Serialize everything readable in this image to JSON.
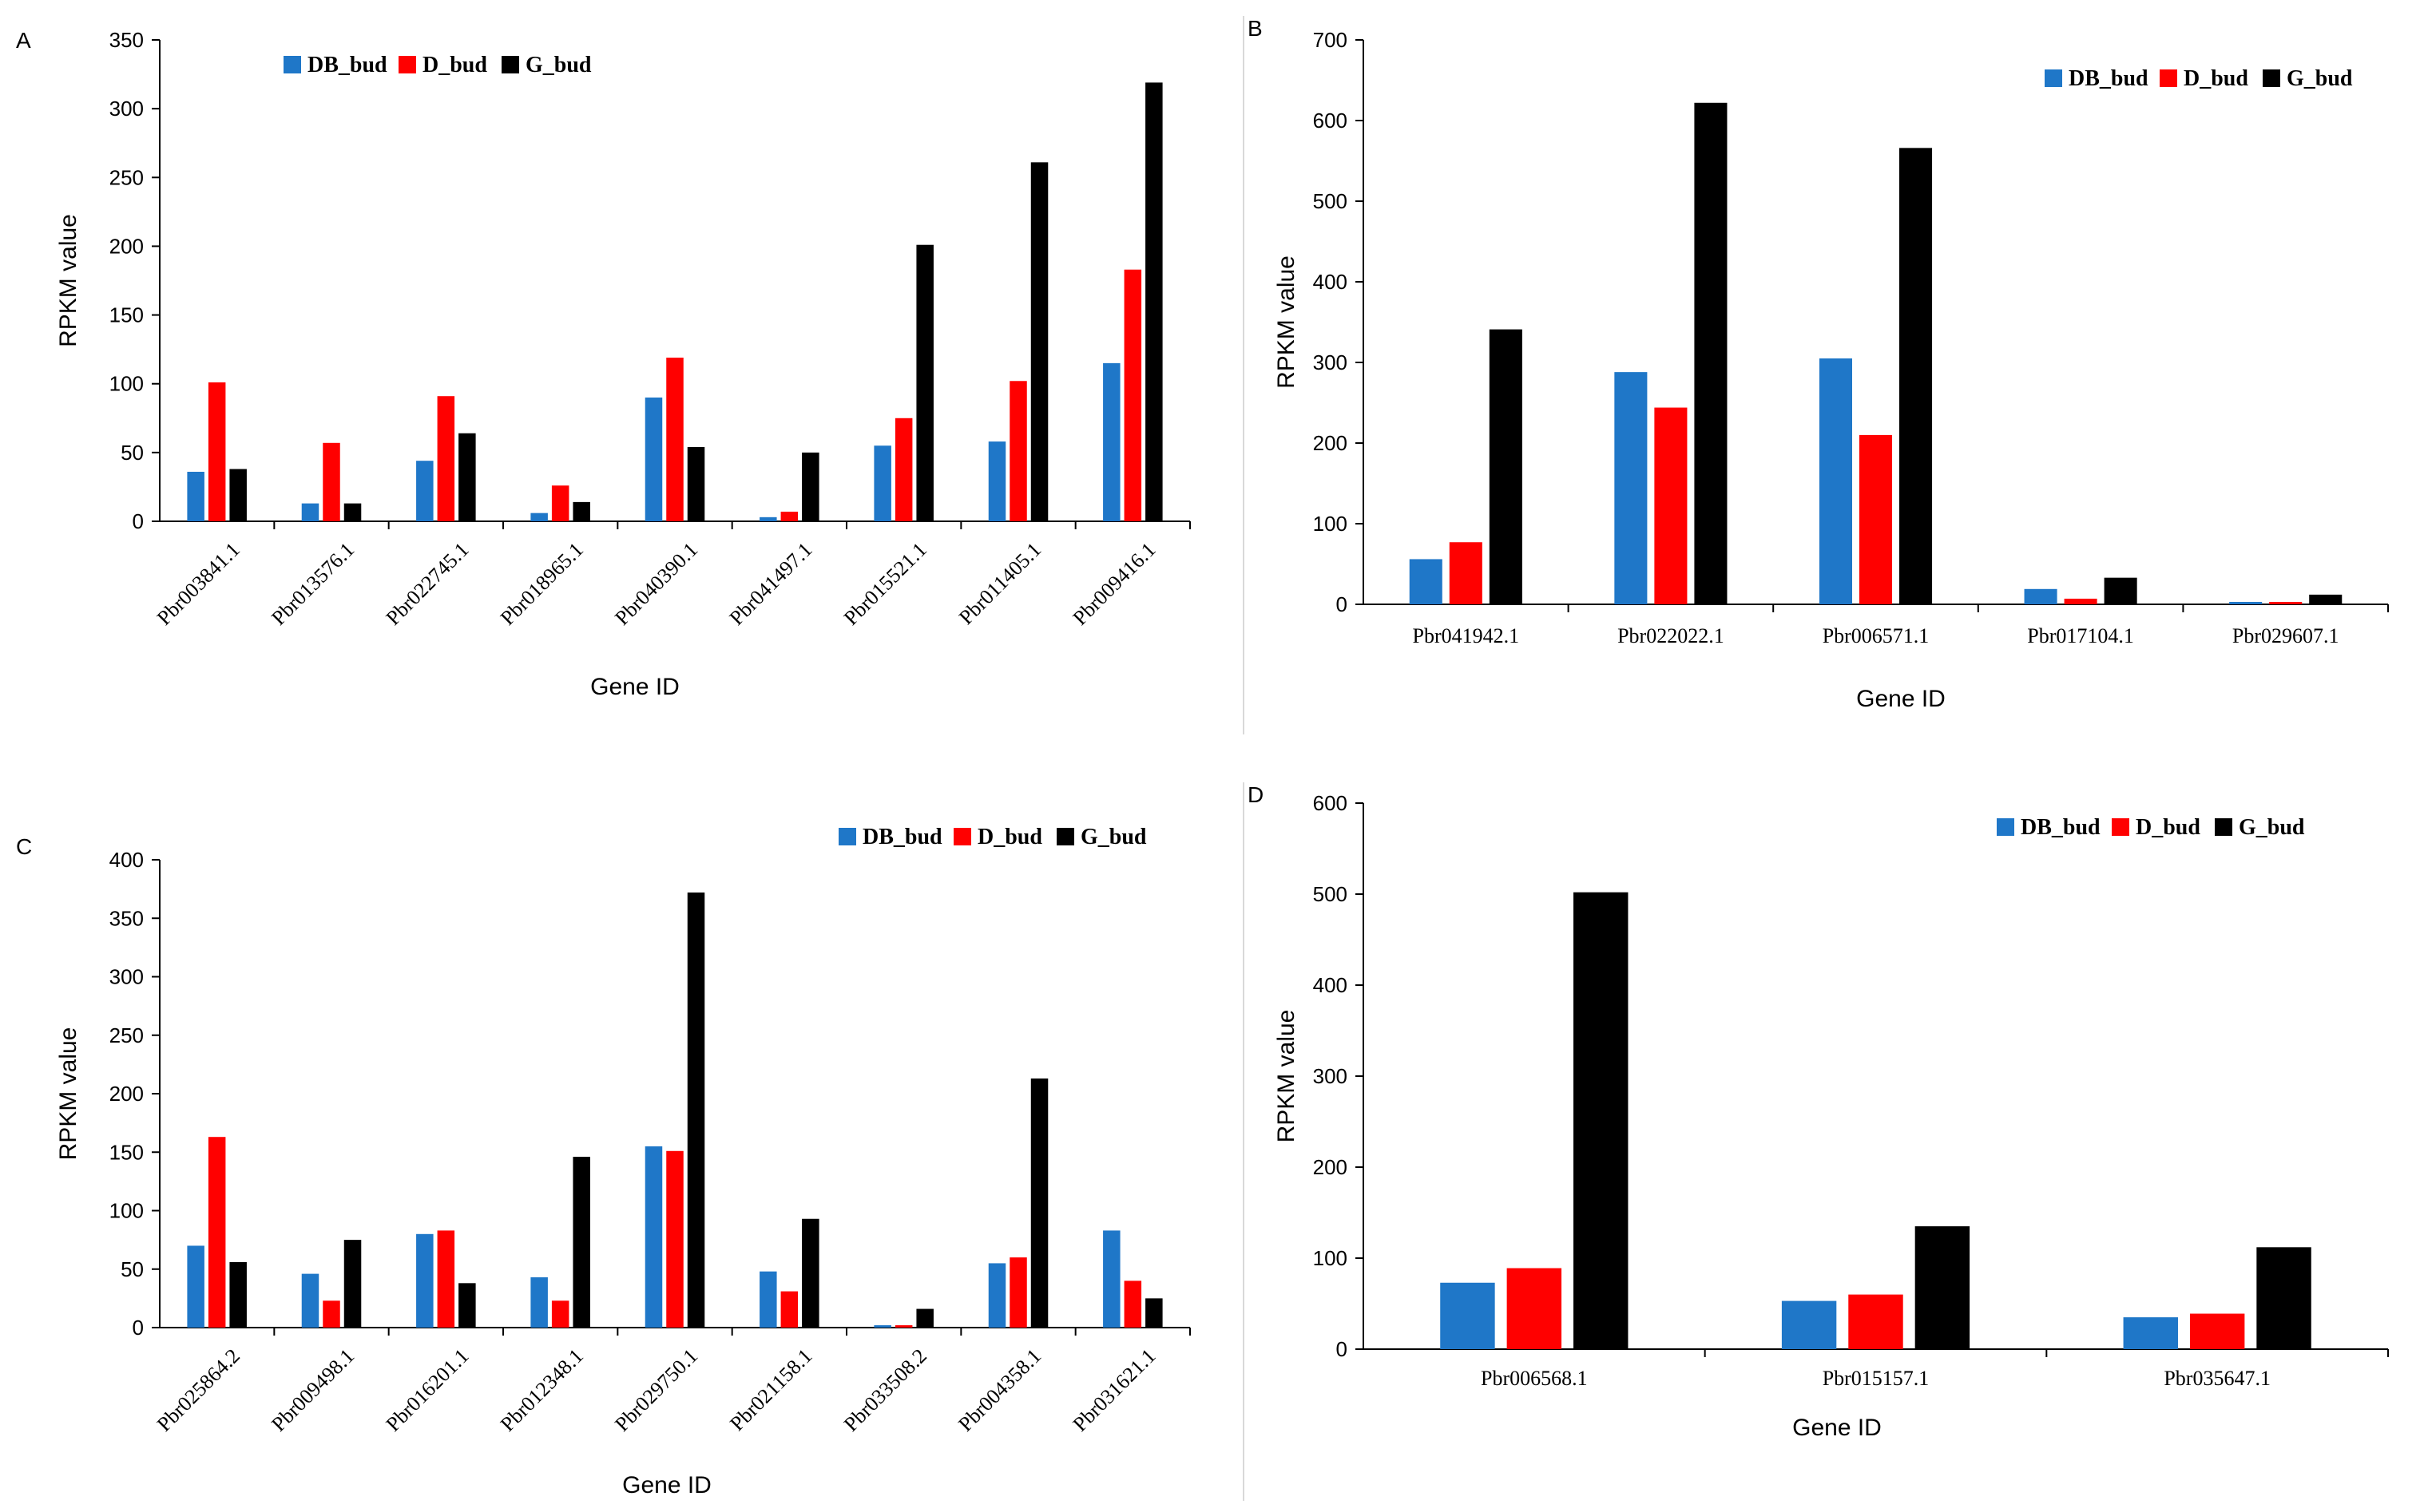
{
  "colors": {
    "DB_bud": "#1f77c8",
    "D_bud": "#ff0000",
    "G_bud": "#000000",
    "axis": "#000000"
  },
  "chart_data": [
    {
      "panel": "A",
      "type": "bar",
      "xlabel": "Gene ID",
      "ylabel": "RPKM value",
      "ylim": [
        0,
        350
      ],
      "yticks": [
        0,
        50,
        100,
        150,
        200,
        250,
        300,
        350
      ],
      "tick_rotation": "rotated",
      "legend": [
        "DB_bud",
        "D_bud",
        "G_bud"
      ],
      "categories": [
        "Pbr003841.1",
        "Pbr013576.1",
        "Pbr022745.1",
        "Pbr018965.1",
        "Pbr040390.1",
        "Pbr041497.1",
        "Pbr015521.1",
        "Pbr011405.1",
        "Pbr009416.1"
      ],
      "series": [
        {
          "name": "DB_bud",
          "values": [
            36,
            13,
            44,
            6,
            90,
            3,
            55,
            58,
            115
          ]
        },
        {
          "name": "D_bud",
          "values": [
            101,
            57,
            91,
            26,
            119,
            7,
            75,
            102,
            183
          ]
        },
        {
          "name": "G_bud",
          "values": [
            38,
            13,
            64,
            14,
            54,
            50,
            201,
            261,
            319
          ]
        }
      ]
    },
    {
      "panel": "B",
      "type": "bar",
      "xlabel": "Gene ID",
      "ylabel": "RPKM value",
      "ylim": [
        0,
        700
      ],
      "yticks": [
        0,
        100,
        200,
        300,
        400,
        500,
        600,
        700
      ],
      "tick_rotation": "none",
      "legend": [
        "DB_bud",
        "D_bud",
        "G_bud"
      ],
      "categories": [
        "Pbr041942.1",
        "Pbr022022.1",
        "Pbr006571.1",
        "Pbr017104.1",
        "Pbr029607.1"
      ],
      "series": [
        {
          "name": "DB_bud",
          "values": [
            56,
            288,
            305,
            19,
            3
          ]
        },
        {
          "name": "D_bud",
          "values": [
            77,
            244,
            210,
            7,
            3
          ]
        },
        {
          "name": "G_bud",
          "values": [
            341,
            622,
            566,
            33,
            12
          ]
        }
      ]
    },
    {
      "panel": "C",
      "type": "bar",
      "xlabel": "Gene ID",
      "ylabel": "RPKM value",
      "ylim": [
        0,
        400
      ],
      "yticks": [
        0,
        50,
        100,
        150,
        200,
        250,
        300,
        350,
        400
      ],
      "tick_rotation": "rotated",
      "legend": [
        "DB_bud",
        "D_bud",
        "G_bud"
      ],
      "categories": [
        "Pbr025864.2",
        "Pbr009498.1",
        "Pbr016201.1",
        "Pbr012348.1",
        "Pbr029750.1",
        "Pbr021158.1",
        "Pbr033508.2",
        "Pbr004358.1",
        "Pbr031621.1"
      ],
      "series": [
        {
          "name": "DB_bud",
          "values": [
            70,
            46,
            80,
            43,
            155,
            48,
            2,
            55,
            83
          ]
        },
        {
          "name": "D_bud",
          "values": [
            163,
            23,
            83,
            23,
            151,
            31,
            2,
            60,
            40
          ]
        },
        {
          "name": "G_bud",
          "values": [
            56,
            75,
            38,
            146,
            372,
            93,
            16,
            213,
            25
          ]
        }
      ]
    },
    {
      "panel": "D",
      "type": "bar",
      "xlabel": "Gene ID",
      "ylabel": "RPKM value",
      "ylim": [
        0,
        600
      ],
      "yticks": [
        0,
        100,
        200,
        300,
        400,
        500,
        600
      ],
      "tick_rotation": "none",
      "legend": [
        "DB_bud",
        "D_bud",
        "G_bud"
      ],
      "categories": [
        "Pbr006568.1",
        "Pbr015157.1",
        "Pbr035647.1"
      ],
      "series": [
        {
          "name": "DB_bud",
          "values": [
            73,
            53,
            35
          ]
        },
        {
          "name": "D_bud",
          "values": [
            89,
            60,
            39
          ]
        },
        {
          "name": "G_bud",
          "values": [
            502,
            135,
            112
          ]
        }
      ]
    }
  ]
}
